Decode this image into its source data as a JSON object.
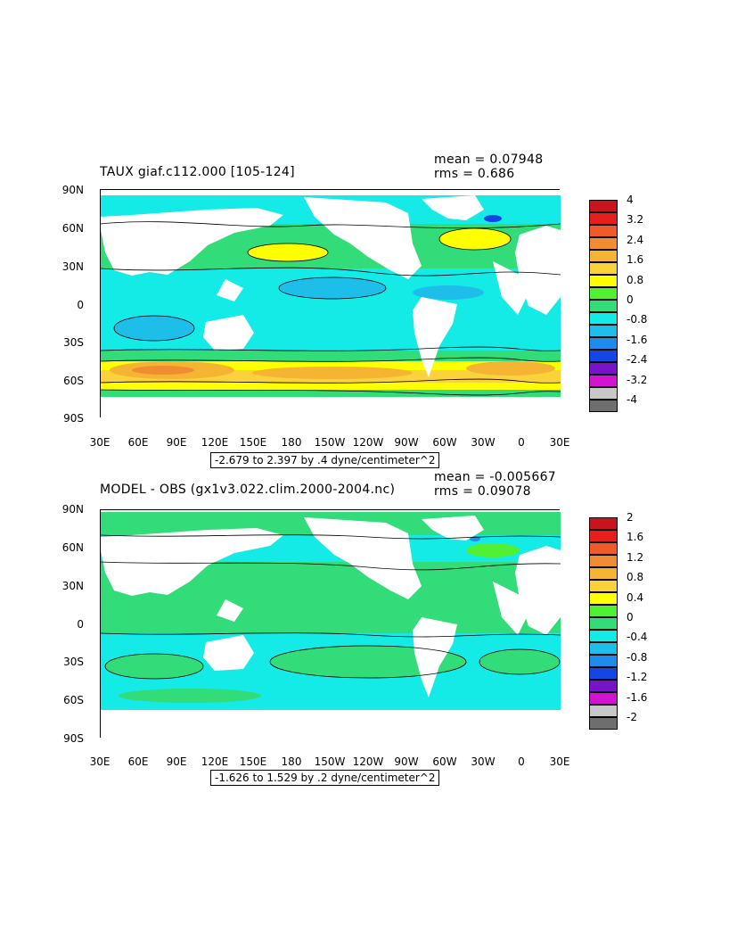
{
  "panels": [
    {
      "id": "top",
      "title": "TAUX giaf.c112.000 [105-124]",
      "mean_label": "mean = 0.07948",
      "rms_label": "rms = 0.686",
      "range_label": "-2.679 to 2.397 by .4 dyne/centimeter^2",
      "lat_labels": [
        "90N",
        "60N",
        "30N",
        "0",
        "30S",
        "60S",
        "90S"
      ],
      "lon_labels": [
        "30E",
        "60E",
        "90E",
        "120E",
        "150E",
        "180",
        "150W",
        "120W",
        "90W",
        "60W",
        "30W",
        "0",
        "30E"
      ],
      "colorbar": {
        "labels": [
          "4",
          "3.2",
          "2.4",
          "1.6",
          "0.8",
          "0",
          "-0.8",
          "-1.6",
          "-2.4",
          "-3.2",
          "-4"
        ],
        "colors": [
          "#C8141E",
          "#E61E1E",
          "#F05A28",
          "#F08C32",
          "#F5B432",
          "#FAD23C",
          "#FFFF00",
          "#50F032",
          "#32DC78",
          "#14EBE6",
          "#1EBEEB",
          "#1E8CEB",
          "#1446E6",
          "#7814C8",
          "#D214D2",
          "#C8C8C8",
          "#6E6E6E"
        ]
      }
    },
    {
      "id": "bottom",
      "title": "MODEL - OBS (gx1v3.022.clim.2000-2004.nc)",
      "mean_label": "mean = -0.005667",
      "rms_label": "rms = 0.09078",
      "range_label": "-1.626 to 1.529 by .2 dyne/centimeter^2",
      "lat_labels": [
        "90N",
        "60N",
        "30N",
        "0",
        "30S",
        "60S",
        "90S"
      ],
      "lon_labels": [
        "30E",
        "60E",
        "90E",
        "120E",
        "150E",
        "180",
        "150W",
        "120W",
        "90W",
        "60W",
        "30W",
        "0",
        "30E"
      ],
      "colorbar": {
        "labels": [
          "2",
          "1.6",
          "1.2",
          "0.8",
          "0.4",
          "0",
          "-0.4",
          "-0.8",
          "-1.2",
          "-1.6",
          "-2"
        ],
        "colors": [
          "#C8141E",
          "#E61E1E",
          "#F05A28",
          "#F08C32",
          "#F5B432",
          "#FAD23C",
          "#FFFF00",
          "#50F032",
          "#32DC78",
          "#14EBE6",
          "#1EBEEB",
          "#1E8CEB",
          "#1446E6",
          "#7814C8",
          "#D214D2",
          "#C8C8C8",
          "#6E6E6E"
        ]
      }
    }
  ]
}
